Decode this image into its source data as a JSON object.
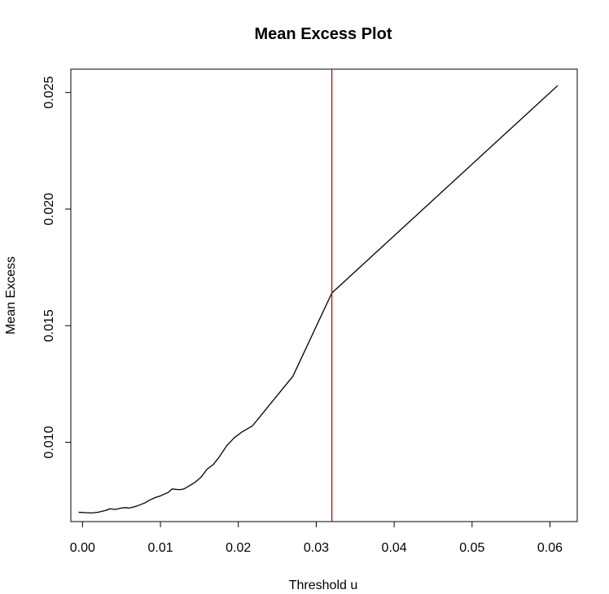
{
  "chart_data": {
    "type": "line",
    "title": "Mean Excess Plot",
    "xlabel": "Threshold u",
    "ylabel": "Mean Excess",
    "xlim": [
      -0.0015,
      0.0635
    ],
    "ylim": [
      0.0066,
      0.026
    ],
    "xticks": [
      0.0,
      0.01,
      0.02,
      0.03,
      0.04,
      0.05,
      0.06
    ],
    "xtick_labels": [
      "0.00",
      "0.01",
      "0.02",
      "0.03",
      "0.04",
      "0.05",
      "0.06"
    ],
    "yticks": [
      0.01,
      0.015,
      0.02,
      0.025
    ],
    "ytick_labels": [
      "0.010",
      "0.015",
      "0.020",
      "0.025"
    ],
    "grid": false,
    "series": [
      {
        "color": "#000000",
        "x": [
          -0.0005,
          0.0005,
          0.0012,
          0.002,
          0.003,
          0.0035,
          0.0042,
          0.005,
          0.0055,
          0.006,
          0.0065,
          0.007,
          0.008,
          0.0085,
          0.009,
          0.0095,
          0.01,
          0.0105,
          0.011,
          0.0115,
          0.012,
          0.0125,
          0.013,
          0.0138,
          0.0145,
          0.0152,
          0.016,
          0.0168,
          0.0175,
          0.0185,
          0.0195,
          0.0205,
          0.0218,
          0.027,
          0.032,
          0.061
        ],
        "y": [
          0.007,
          0.00698,
          0.00697,
          0.007,
          0.00708,
          0.00715,
          0.00712,
          0.00718,
          0.0072,
          0.00718,
          0.00722,
          0.00727,
          0.0074,
          0.0075,
          0.00758,
          0.00765,
          0.0077,
          0.00778,
          0.00785,
          0.008,
          0.00798,
          0.00797,
          0.008,
          0.00815,
          0.0083,
          0.0085,
          0.00885,
          0.00905,
          0.00935,
          0.00985,
          0.0102,
          0.01045,
          0.0107,
          0.01283,
          0.0164,
          0.0253
        ]
      }
    ],
    "vline": {
      "x": 0.032,
      "color": "#cc0000"
    }
  }
}
